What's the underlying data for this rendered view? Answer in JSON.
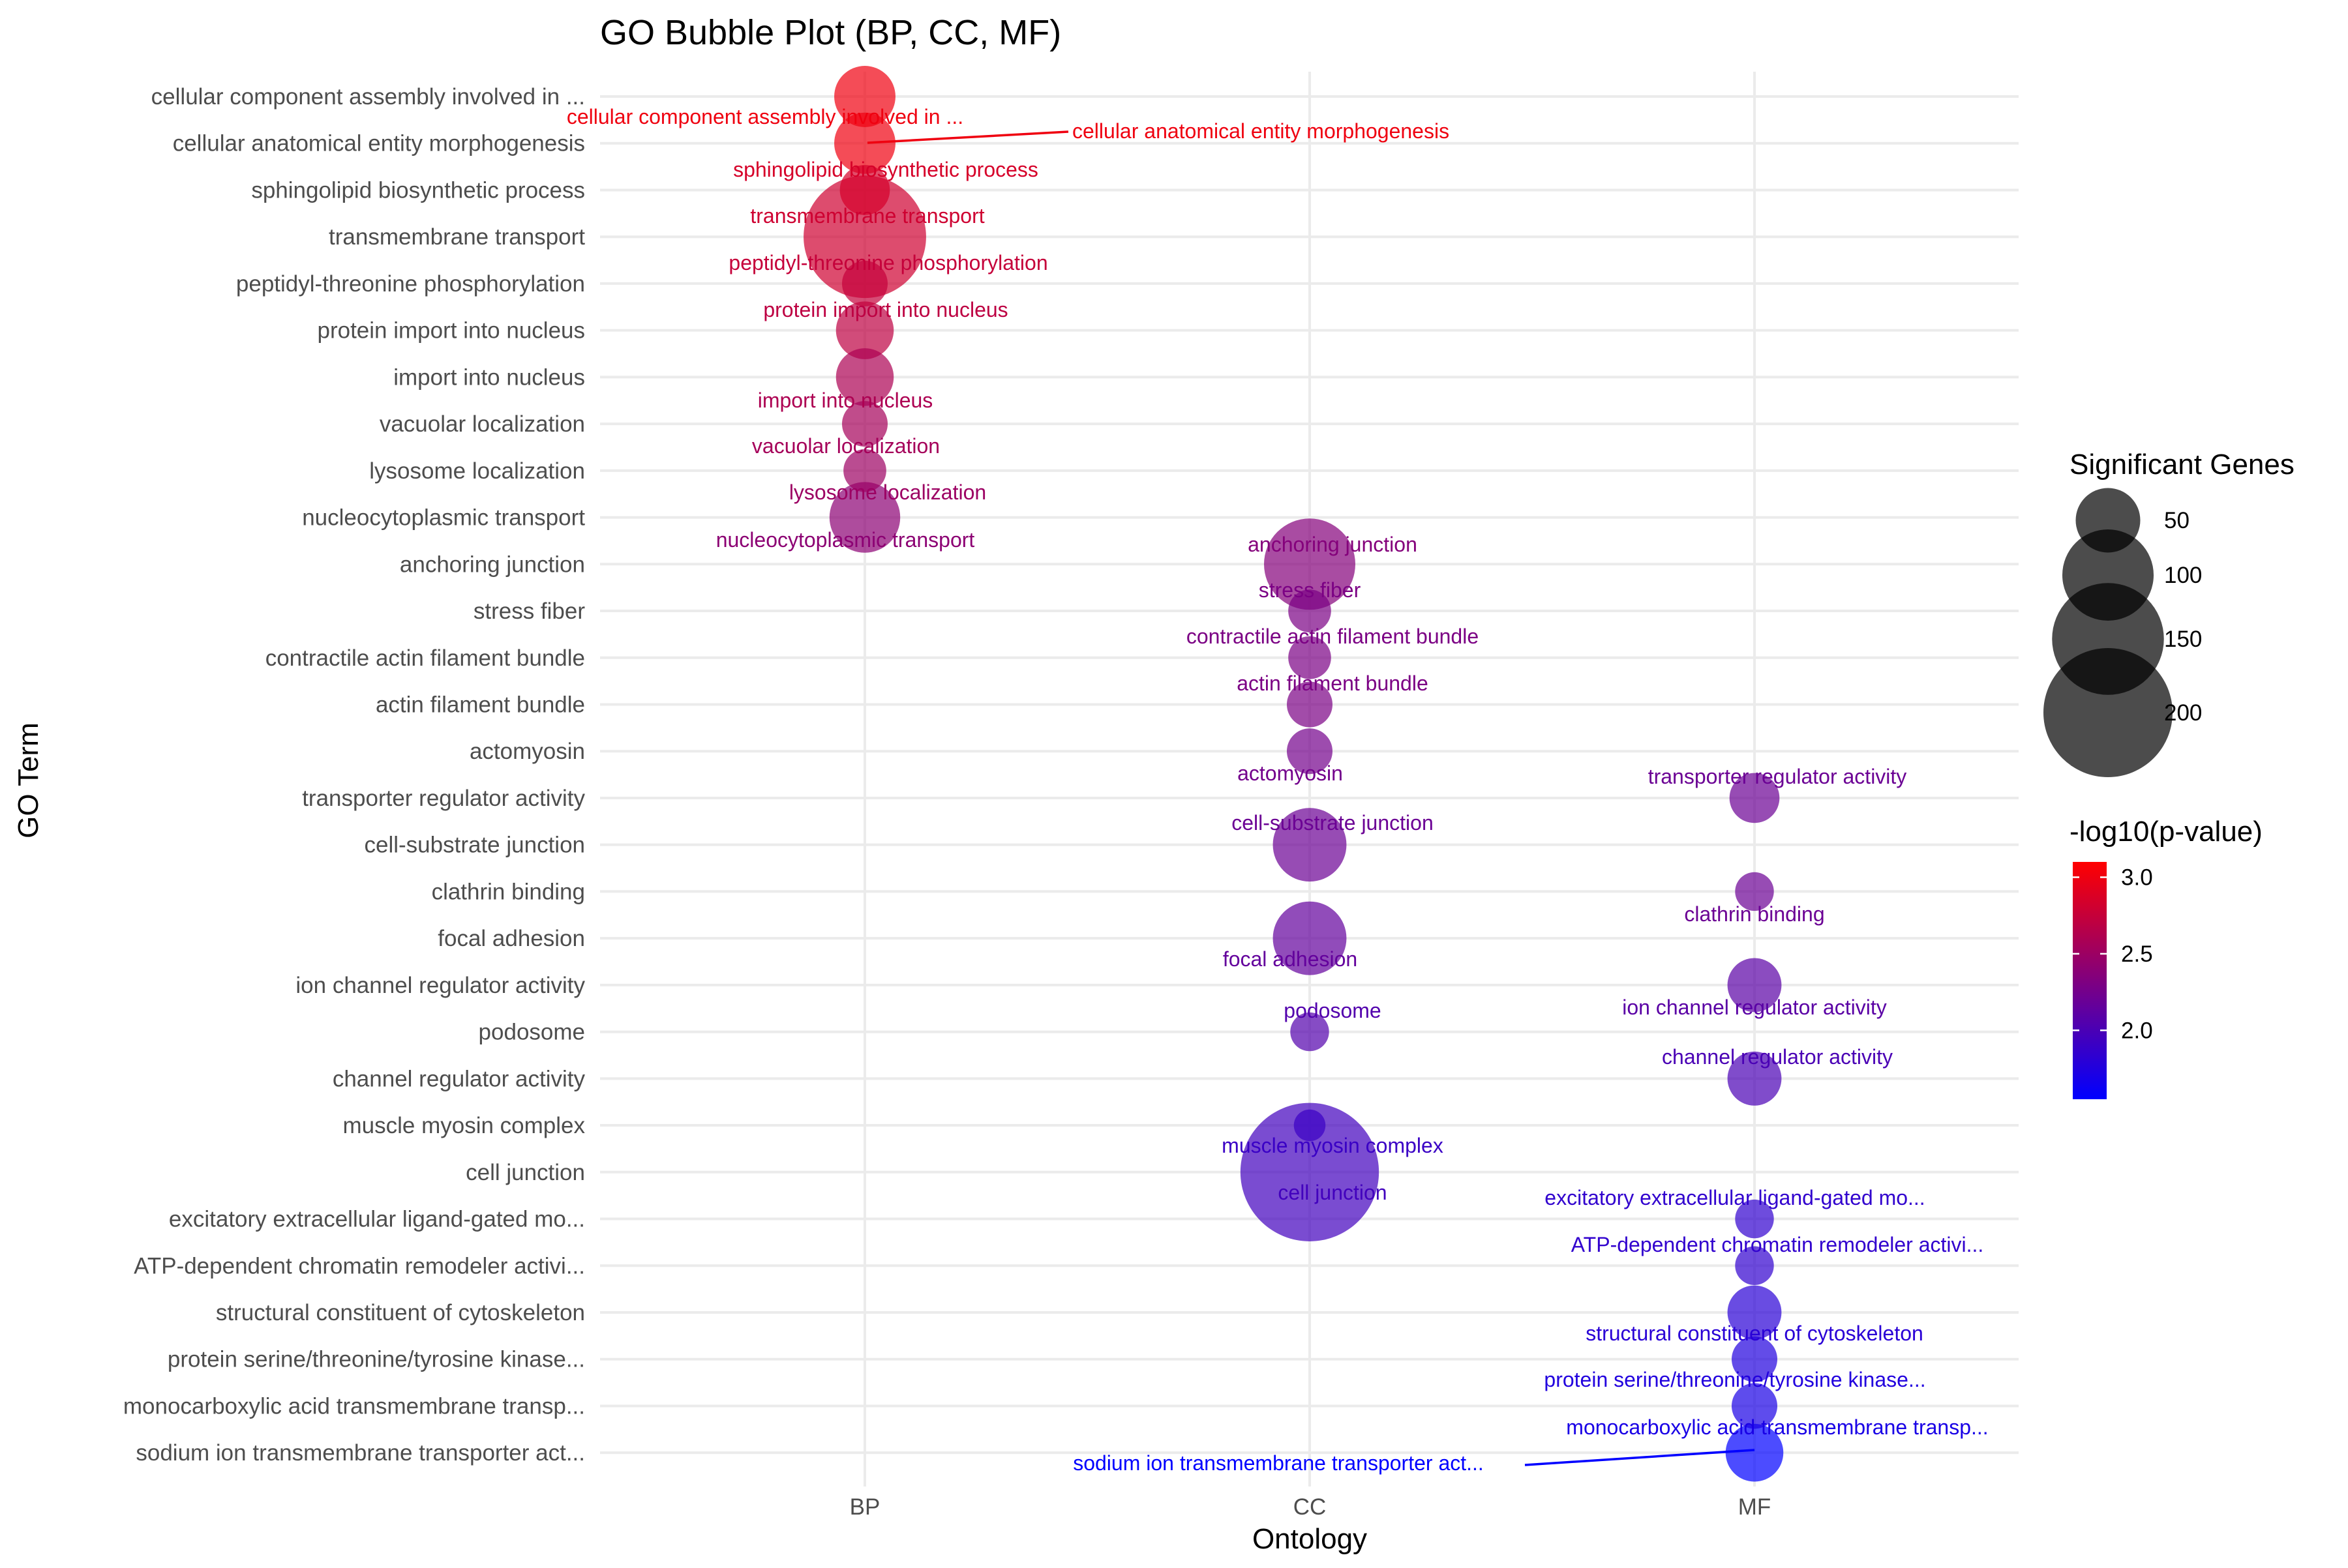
{
  "chart_data": {
    "type": "scatter",
    "title": "GO Bubble Plot (BP, CC, MF)",
    "xlabel": "Ontology",
    "ylabel": "GO Term",
    "x_categories": [
      "BP",
      "CC",
      "MF"
    ],
    "y_categories": [
      "cellular component assembly involved in ...",
      "cellular anatomical entity morphogenesis",
      "sphingolipid biosynthetic process",
      "transmembrane transport",
      "peptidyl-threonine phosphorylation",
      "protein import into nucleus",
      "import into nucleus",
      "vacuolar localization",
      "lysosome localization",
      "nucleocytoplasmic transport",
      "anchoring junction",
      "stress fiber",
      "contractile actin filament bundle",
      "actin filament bundle",
      "actomyosin",
      "transporter regulator activity",
      "cell-substrate junction",
      "clathrin binding",
      "focal adhesion",
      "ion channel regulator activity",
      "podosome",
      "channel regulator activity",
      "muscle myosin complex",
      "cell junction",
      "excitatory extracellular ligand-gated mo...",
      "ATP-dependent chromatin remodeler activi...",
      "structural constituent of cytoskeleton",
      "protein serine/threonine/tyrosine kinase...",
      "monocarboxylic acid transmembrane transp...",
      "sodium ion transmembrane transporter act..."
    ],
    "points": [
      {
        "term": "cellular component assembly involved in ...",
        "ontology": "BP",
        "genes": 45,
        "neglog10p": 3.0,
        "label": "cellular component assembly involved in ..."
      },
      {
        "term": "cellular anatomical entity morphogenesis",
        "ontology": "BP",
        "genes": 45,
        "neglog10p": 3.0,
        "label": "cellular anatomical entity morphogenesis"
      },
      {
        "term": "sphingolipid biosynthetic process",
        "ontology": "BP",
        "genes": 30,
        "neglog10p": 2.85,
        "label": "sphingolipid biosynthetic process"
      },
      {
        "term": "transmembrane transport",
        "ontology": "BP",
        "genes": 180,
        "neglog10p": 2.8,
        "label": "transmembrane transport"
      },
      {
        "term": "peptidyl-threonine phosphorylation",
        "ontology": "BP",
        "genes": 25,
        "neglog10p": 2.75,
        "label": "peptidyl-threonine phosphorylation"
      },
      {
        "term": "protein import into nucleus",
        "ontology": "BP",
        "genes": 40,
        "neglog10p": 2.7,
        "label": "protein import into nucleus"
      },
      {
        "term": "import into nucleus",
        "ontology": "BP",
        "genes": 40,
        "neglog10p": 2.6,
        "label": "import into nucleus"
      },
      {
        "term": "vacuolar localization",
        "ontology": "BP",
        "genes": 25,
        "neglog10p": 2.55,
        "label": "vacuolar localization"
      },
      {
        "term": "lysosome localization",
        "ontology": "BP",
        "genes": 22,
        "neglog10p": 2.5,
        "label": "lysosome localization"
      },
      {
        "term": "nucleocytoplasmic transport",
        "ontology": "BP",
        "genes": 60,
        "neglog10p": 2.4,
        "label": "nucleocytoplasmic transport"
      },
      {
        "term": "anchoring junction",
        "ontology": "CC",
        "genes": 100,
        "neglog10p": 2.35,
        "label": "anchoring junction"
      },
      {
        "term": "stress fiber",
        "ontology": "CC",
        "genes": 22,
        "neglog10p": 2.3,
        "label": "stress fiber"
      },
      {
        "term": "contractile actin filament bundle",
        "ontology": "CC",
        "genes": 22,
        "neglog10p": 2.3,
        "label": "contractile actin filament bundle"
      },
      {
        "term": "actin filament bundle",
        "ontology": "CC",
        "genes": 25,
        "neglog10p": 2.3,
        "label": "actin filament bundle"
      },
      {
        "term": "actomyosin",
        "ontology": "CC",
        "genes": 25,
        "neglog10p": 2.25,
        "label": "actomyosin"
      },
      {
        "term": "transporter regulator activity",
        "ontology": "MF",
        "genes": 30,
        "neglog10p": 2.2,
        "label": "transporter regulator activity"
      },
      {
        "term": "cell-substrate junction",
        "ontology": "CC",
        "genes": 65,
        "neglog10p": 2.2,
        "label": "cell-substrate junction"
      },
      {
        "term": "clathrin binding",
        "ontology": "MF",
        "genes": 18,
        "neglog10p": 2.2,
        "label": "clathrin binding"
      },
      {
        "term": "focal adhesion",
        "ontology": "CC",
        "genes": 65,
        "neglog10p": 2.15,
        "label": "focal adhesion"
      },
      {
        "term": "ion channel regulator activity",
        "ontology": "MF",
        "genes": 35,
        "neglog10p": 2.1,
        "label": "ion channel regulator activity"
      },
      {
        "term": "podosome",
        "ontology": "CC",
        "genes": 18,
        "neglog10p": 2.05,
        "label": "podosome"
      },
      {
        "term": "channel regulator activity",
        "ontology": "MF",
        "genes": 35,
        "neglog10p": 2.0,
        "label": "channel regulator activity"
      },
      {
        "term": "muscle myosin complex",
        "ontology": "CC",
        "genes": 12,
        "neglog10p": 1.9,
        "label": "muscle myosin complex"
      },
      {
        "term": "cell junction",
        "ontology": "CC",
        "genes": 230,
        "neglog10p": 1.95,
        "label": "cell junction"
      },
      {
        "term": "excitatory extracellular ligand-gated mo...",
        "ontology": "MF",
        "genes": 18,
        "neglog10p": 1.85,
        "label": "excitatory extracellular ligand-gated mo..."
      },
      {
        "term": "ATP-dependent chromatin remodeler activi...",
        "ontology": "MF",
        "genes": 18,
        "neglog10p": 1.85,
        "label": "ATP-dependent chromatin remodeler activi..."
      },
      {
        "term": "structural constituent of cytoskeleton",
        "ontology": "MF",
        "genes": 35,
        "neglog10p": 1.8,
        "label": "structural constituent of cytoskeleton"
      },
      {
        "term": "protein serine/threonine/tyrosine kinase...",
        "ontology": "MF",
        "genes": 25,
        "neglog10p": 1.75,
        "label": "protein serine/threonine/tyrosine kinase..."
      },
      {
        "term": "monocarboxylic acid transmembrane transp...",
        "ontology": "MF",
        "genes": 25,
        "neglog10p": 1.7,
        "label": "monocarboxylic acid transmembrane transp..."
      },
      {
        "term": "sodium ion transmembrane transporter act...",
        "ontology": "MF",
        "genes": 40,
        "neglog10p": 1.55,
        "label": "sodium ion transmembrane transporter act..."
      }
    ],
    "size_legend": {
      "title": "Significant Genes",
      "breaks": [
        50,
        100,
        150,
        200
      ],
      "labels": [
        "50",
        "100",
        "150",
        "200"
      ]
    },
    "color_legend": {
      "title": "-log10(p-value)",
      "range": [
        1.55,
        3.1
      ],
      "breaks": [
        2.0,
        2.5,
        3.0
      ],
      "labels": [
        "2.0",
        "2.5",
        "3.0"
      ],
      "low_color": "#0000ff",
      "high_color": "#ff0000"
    },
    "grid": true,
    "legend_position": "right",
    "point_alpha": 0.7,
    "background": "#ffffff"
  }
}
